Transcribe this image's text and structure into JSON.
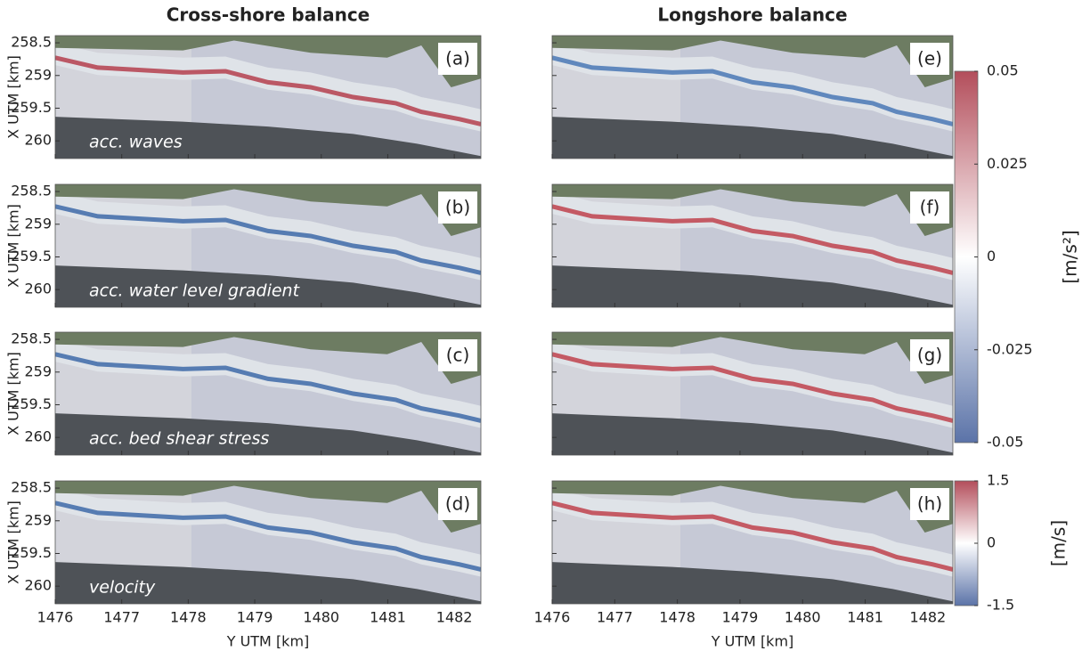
{
  "chart_data": {
    "type": "map",
    "titles": [
      "Cross-shore balance",
      "Longshore balance"
    ],
    "xlabel": "Y UTM [km]",
    "ylabel": "X UTM [km]",
    "xlim": [
      1476,
      1482.4
    ],
    "ylim": [
      258.39,
      260.27
    ],
    "y_reversed": true,
    "xticks": [
      1476,
      1477,
      1478,
      1479,
      1480,
      1481,
      1482
    ],
    "yticks": [
      258.5,
      259,
      259.5,
      260
    ],
    "panels": [
      {
        "label": "(a)",
        "annotation": "acc. waves"
      },
      {
        "label": "(b)",
        "annotation": "acc. water level gradient"
      },
      {
        "label": "(c)",
        "annotation": "acc. bed shear stress"
      },
      {
        "label": "(d)",
        "annotation": "velocity"
      },
      {
        "label": "(e)"
      },
      {
        "label": "(f)"
      },
      {
        "label": "(g)"
      },
      {
        "label": "(h)"
      }
    ],
    "colorbars": [
      {
        "label": "[m/s²]",
        "lim": [
          -0.05,
          0.05
        ],
        "ticks": [
          0.05,
          0.025,
          0,
          -0.025,
          -0.05
        ],
        "colors": [
          "#5b73a8",
          "#ffffff",
          "#b34e5b"
        ]
      },
      {
        "label": "[m/s]",
        "lim": [
          -1.5,
          1.5
        ],
        "ticks": [
          1.5,
          0,
          -1.5
        ],
        "colors": [
          "#5b73a8",
          "#ffffff",
          "#b34e5b"
        ]
      }
    ]
  }
}
